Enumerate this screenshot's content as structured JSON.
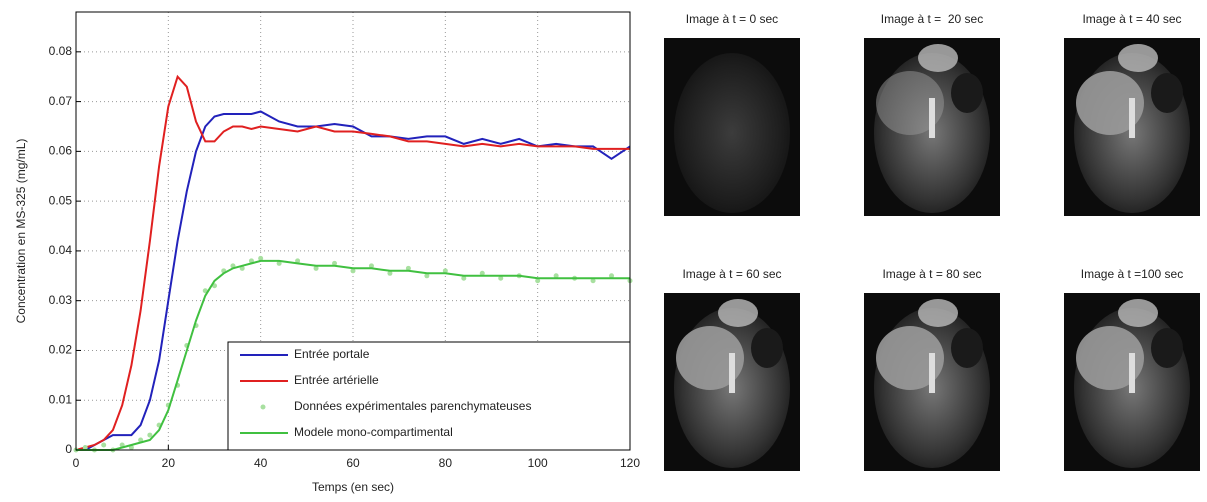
{
  "chart_data": {
    "type": "line",
    "xlabel": "Temps (en sec)",
    "ylabel": "Concentration en MS-325 (mg/mL)",
    "x": [
      0,
      2,
      4,
      6,
      8,
      10,
      12,
      14,
      16,
      18,
      20,
      22,
      24,
      26,
      28,
      30,
      32,
      34,
      36,
      38,
      40,
      44,
      48,
      52,
      56,
      60,
      64,
      68,
      72,
      76,
      80,
      84,
      88,
      92,
      96,
      100,
      104,
      108,
      112,
      116,
      120
    ],
    "xlim": [
      0,
      120
    ],
    "xticks": [
      0,
      20,
      40,
      60,
      80,
      100,
      120
    ],
    "ylim": [
      0,
      0.088
    ],
    "yticks": [
      0,
      0.01,
      0.02,
      0.03,
      0.04,
      0.05,
      0.06,
      0.07,
      0.08
    ],
    "grid": true,
    "legend": "lower right",
    "series": [
      {
        "name": "Entrée portale",
        "color": "#2222bb",
        "mode": "line",
        "values": [
          0,
          0,
          0.001,
          0.002,
          0.003,
          0.003,
          0.003,
          0.005,
          0.01,
          0.018,
          0.03,
          0.042,
          0.052,
          0.06,
          0.065,
          0.067,
          0.0675,
          0.0675,
          0.0675,
          0.0675,
          0.068,
          0.066,
          0.065,
          0.065,
          0.0655,
          0.065,
          0.063,
          0.063,
          0.0625,
          0.063,
          0.063,
          0.0615,
          0.0625,
          0.0615,
          0.0625,
          0.061,
          0.0615,
          0.061,
          0.061,
          0.0585,
          0.061
        ]
      },
      {
        "name": "Entrée artérielle",
        "color": "#e02020",
        "mode": "line",
        "values": [
          0,
          0.0005,
          0.001,
          0.002,
          0.004,
          0.009,
          0.017,
          0.028,
          0.042,
          0.057,
          0.069,
          0.075,
          0.073,
          0.066,
          0.062,
          0.062,
          0.064,
          0.065,
          0.065,
          0.0645,
          0.065,
          0.0645,
          0.064,
          0.065,
          0.064,
          0.064,
          0.0635,
          0.063,
          0.062,
          0.062,
          0.0615,
          0.061,
          0.0615,
          0.061,
          0.0615,
          0.061,
          0.061,
          0.061,
          0.0605,
          0.0605,
          0.0605
        ]
      },
      {
        "name": "Données expérimentales parenchymateuses",
        "color": "#a8e0a0",
        "mode": "markers",
        "values": [
          0,
          0.0005,
          0,
          0.001,
          0,
          0.001,
          0.0005,
          0.002,
          0.003,
          0.005,
          0.009,
          0.013,
          0.021,
          0.025,
          0.032,
          0.033,
          0.036,
          0.037,
          0.0365,
          0.038,
          0.0385,
          0.0375,
          0.038,
          0.0365,
          0.0375,
          0.036,
          0.037,
          0.0355,
          0.0365,
          0.035,
          0.036,
          0.0345,
          0.0355,
          0.0345,
          0.035,
          0.034,
          0.035,
          0.0345,
          0.034,
          0.035,
          0.034
        ]
      },
      {
        "name": "Modele mono-compartimental",
        "color": "#40c040",
        "mode": "line",
        "values": [
          0,
          0,
          0,
          0,
          0,
          0.0005,
          0.001,
          0.0015,
          0.002,
          0.004,
          0.008,
          0.014,
          0.02,
          0.026,
          0.031,
          0.034,
          0.0355,
          0.0365,
          0.037,
          0.0375,
          0.038,
          0.038,
          0.0375,
          0.037,
          0.037,
          0.0365,
          0.0365,
          0.036,
          0.036,
          0.0355,
          0.0355,
          0.035,
          0.035,
          0.035,
          0.035,
          0.0345,
          0.0345,
          0.0345,
          0.0345,
          0.0345,
          0.0345
        ]
      }
    ]
  },
  "images": [
    {
      "title": "Image à t = 0 sec"
    },
    {
      "title": "Image à t =  20 sec"
    },
    {
      "title": "Image à t = 40 sec"
    },
    {
      "title": "Image à t = 60 sec"
    },
    {
      "title": "Image à t = 80 sec"
    },
    {
      "title": "Image à t =100 sec"
    }
  ]
}
